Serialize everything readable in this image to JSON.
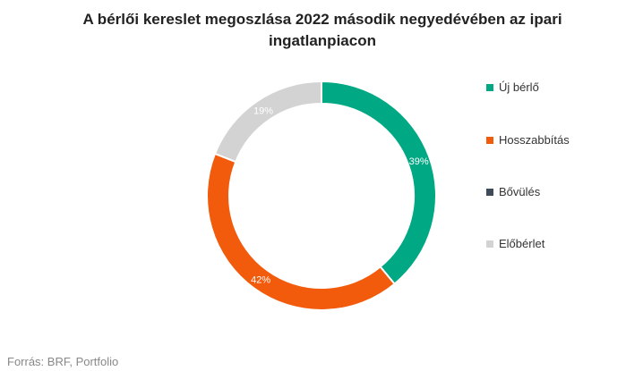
{
  "chart_data": {
    "type": "pie",
    "title": "A bérlői kereslet megoszlása 2022 második negyedévében az ipari ingatlanpiacon",
    "categories": [
      "Új bérlő",
      "Hosszabbítás",
      "Bővülés",
      "Előbérlet"
    ],
    "values": [
      39,
      42,
      0,
      19
    ],
    "labels": [
      "39%",
      "42%",
      "",
      "19%"
    ],
    "colors": [
      "#00a884",
      "#f25a0c",
      "#3d4a58",
      "#d3d3d3"
    ],
    "label_colors": [
      "#ffffff",
      "#ffffff",
      "#ffffff",
      "#ffffff"
    ],
    "donut": true,
    "legend_position": "right"
  },
  "source": "Forrás: BRF, Portfolio"
}
